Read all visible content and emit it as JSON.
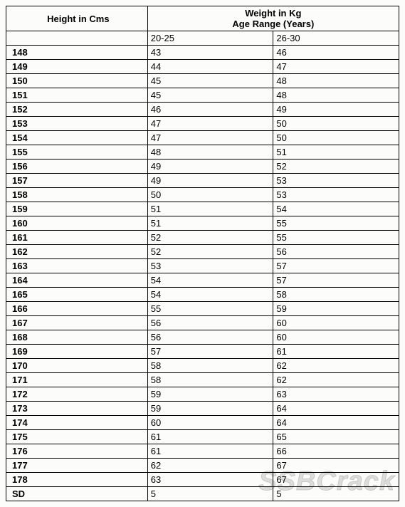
{
  "table": {
    "header": {
      "height_label": "Height in Cms",
      "weight_label": "Weight in Kg",
      "age_range_label": "Age Range (Years)"
    },
    "age_columns": [
      "20-25",
      "26-30"
    ],
    "rows": [
      {
        "height": "148",
        "c1": "43",
        "c2": "46"
      },
      {
        "height": "149",
        "c1": "44",
        "c2": "47"
      },
      {
        "height": "150",
        "c1": "45",
        "c2": "48"
      },
      {
        "height": "151",
        "c1": "45",
        "c2": "48"
      },
      {
        "height": "152",
        "c1": "46",
        "c2": "49"
      },
      {
        "height": "153",
        "c1": "47",
        "c2": "50"
      },
      {
        "height": "154",
        "c1": "47",
        "c2": "50"
      },
      {
        "height": "155",
        "c1": "48",
        "c2": "51"
      },
      {
        "height": "156",
        "c1": "49",
        "c2": "52"
      },
      {
        "height": "157",
        "c1": "49",
        "c2": "53"
      },
      {
        "height": "158",
        "c1": "50",
        "c2": "53"
      },
      {
        "height": "159",
        "c1": "51",
        "c2": "54"
      },
      {
        "height": "160",
        "c1": "51",
        "c2": "55"
      },
      {
        "height": "161",
        "c1": "52",
        "c2": "55"
      },
      {
        "height": "162",
        "c1": "52",
        "c2": "56"
      },
      {
        "height": "163",
        "c1": "53",
        "c2": "57"
      },
      {
        "height": "164",
        "c1": "54",
        "c2": "57"
      },
      {
        "height": "165",
        "c1": "54",
        "c2": "58"
      },
      {
        "height": "166",
        "c1": "55",
        "c2": "59"
      },
      {
        "height": "167",
        "c1": "56",
        "c2": "60"
      },
      {
        "height": "168",
        "c1": "56",
        "c2": "60"
      },
      {
        "height": "169",
        "c1": "57",
        "c2": "61"
      },
      {
        "height": "170",
        "c1": "58",
        "c2": "62"
      },
      {
        "height": "171",
        "c1": "58",
        "c2": "62"
      },
      {
        "height": "172",
        "c1": "59",
        "c2": "63"
      },
      {
        "height": "173",
        "c1": "59",
        "c2": "64"
      },
      {
        "height": "174",
        "c1": "60",
        "c2": "64"
      },
      {
        "height": "175",
        "c1": "61",
        "c2": "65"
      },
      {
        "height": "176",
        "c1": "61",
        "c2": "66"
      },
      {
        "height": "177",
        "c1": "62",
        "c2": "67"
      },
      {
        "height": "178",
        "c1": "63",
        "c2": "67"
      },
      {
        "height": "SD",
        "c1": "5",
        "c2": "5"
      }
    ]
  },
  "watermark": "SSBCrack"
}
